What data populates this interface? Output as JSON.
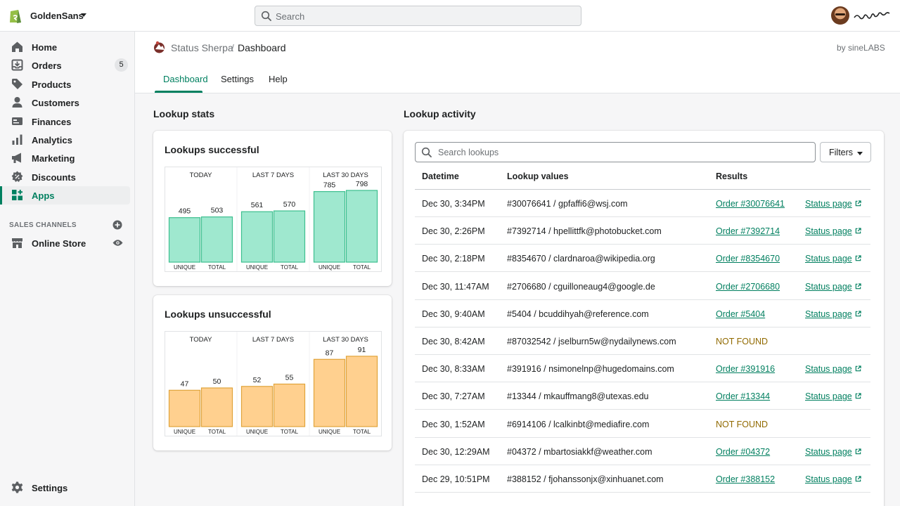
{
  "topbar": {
    "store_name": "GoldenSans",
    "search_placeholder": "Search"
  },
  "sidebar": {
    "items": [
      {
        "label": "Home",
        "icon": "home-icon"
      },
      {
        "label": "Orders",
        "icon": "orders-icon",
        "badge": "5"
      },
      {
        "label": "Products",
        "icon": "tag-icon"
      },
      {
        "label": "Customers",
        "icon": "person-icon"
      },
      {
        "label": "Finances",
        "icon": "finances-icon"
      },
      {
        "label": "Analytics",
        "icon": "bar-chart-icon"
      },
      {
        "label": "Marketing",
        "icon": "megaphone-icon"
      },
      {
        "label": "Discounts",
        "icon": "discount-icon"
      },
      {
        "label": "Apps",
        "icon": "apps-icon",
        "active": true
      }
    ],
    "sales_channels_title": "SALES CHANNELS",
    "online_store": "Online Store",
    "settings": "Settings"
  },
  "app_header": {
    "app_name": "Status Sherpa",
    "separator": "/",
    "page": "Dashboard",
    "by": "by sineLABS",
    "tabs": [
      "Dashboard",
      "Settings",
      "Help"
    ]
  },
  "stats": {
    "heading": "Lookup stats"
  },
  "activity": {
    "heading": "Lookup activity",
    "search_placeholder": "Search lookups",
    "filters_label": "Filters",
    "columns": [
      "Datetime",
      "Lookup values",
      "Results"
    ],
    "rows": [
      {
        "datetime": "Dec 30, 3:34PM",
        "value": "#30076641 / gpfaffi6@wsj.com",
        "result": "Order #30076641",
        "status": "Status page"
      },
      {
        "datetime": "Dec 30, 2:26PM",
        "value": "#7392714 / hpellittfk@photobucket.com",
        "result": "Order #7392714",
        "status": "Status page"
      },
      {
        "datetime": "Dec 30, 2:18PM",
        "value": "#8354670 / clardnaroa@wikipedia.org",
        "result": "Order #8354670",
        "status": "Status page"
      },
      {
        "datetime": "Dec 30, 11:47AM",
        "value": "#2706680 / cguilloneaug4@google.de",
        "result": "Order #2706680",
        "status": "Status page"
      },
      {
        "datetime": "Dec 30, 9:40AM",
        "value": "#5404 / bcuddihyah@reference.com",
        "result": "Order #5404",
        "status": "Status page"
      },
      {
        "datetime": "Dec 30, 8:42AM",
        "value": "#87032542 / jselburn5w@nydailynews.com",
        "result": "NOT FOUND",
        "status": ""
      },
      {
        "datetime": "Dec 30, 8:33AM",
        "value": "#391916 / nsimonelnp@hugedomains.com",
        "result": "Order #391916",
        "status": "Status page"
      },
      {
        "datetime": "Dec 30, 7:27AM",
        "value": "#13344 / mkauffmang8@utexas.edu",
        "result": "Order #13344",
        "status": "Status page"
      },
      {
        "datetime": "Dec 30, 1:52AM",
        "value": "#6914106 / lcalkinbt@mediafire.com",
        "result": "NOT FOUND",
        "status": ""
      },
      {
        "datetime": "Dec 30, 12:29AM",
        "value": "#04372 / mbartosiakkf@weather.com",
        "result": "Order #04372",
        "status": "Status page"
      },
      {
        "datetime": "Dec 29, 10:51PM",
        "value": "#388152 / fjohanssonjx@xinhuanet.com",
        "result": "Order #388152",
        "status": "Status page"
      }
    ]
  },
  "chart_data": [
    {
      "type": "bar",
      "title": "Lookups successful",
      "groups": [
        "TODAY",
        "LAST 7 DAYS",
        "LAST 30 DAYS"
      ],
      "categories": [
        "UNIQUE",
        "TOTAL"
      ],
      "series": [
        {
          "values": [
            495,
            503
          ]
        },
        {
          "values": [
            561,
            570
          ]
        },
        {
          "values": [
            785,
            798
          ]
        }
      ],
      "color": "#9fe8cf",
      "stroke": "#3cbf8f",
      "ylim": [
        0,
        860
      ]
    },
    {
      "type": "bar",
      "title": "Lookups unsuccessful",
      "groups": [
        "TODAY",
        "LAST 7 DAYS",
        "LAST 30 DAYS"
      ],
      "categories": [
        "UNIQUE",
        "TOTAL"
      ],
      "series": [
        {
          "values": [
            47,
            50
          ]
        },
        {
          "values": [
            52,
            55
          ]
        },
        {
          "values": [
            87,
            91
          ]
        }
      ],
      "color": "#ffd08f",
      "stroke": "#e0a33a",
      "ylim": [
        0,
        100
      ]
    }
  ]
}
